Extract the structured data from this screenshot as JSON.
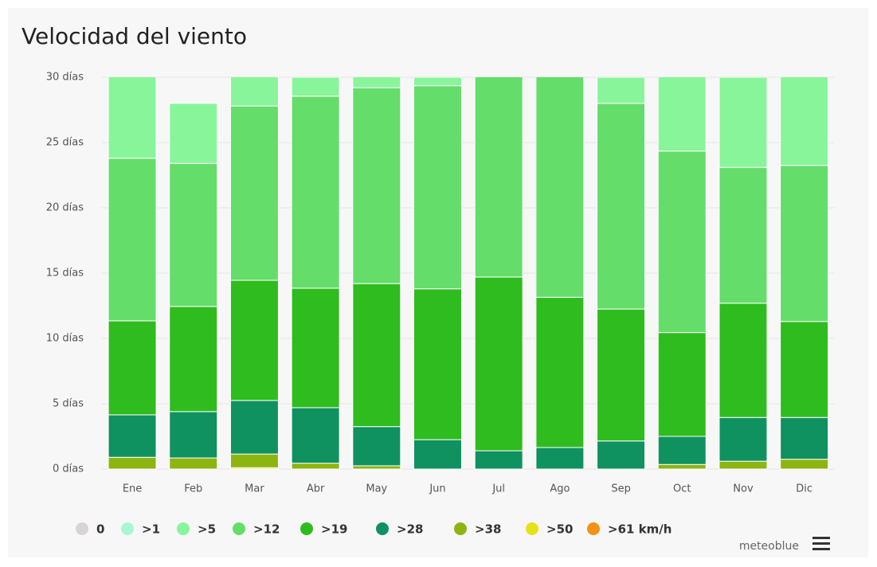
{
  "chart_data": {
    "type": "stacked_bar",
    "title": "Velocidad del viento",
    "categories": [
      "Ene",
      "Feb",
      "Mar",
      "Abr",
      "May",
      "Jun",
      "Jul",
      "Ago",
      "Sep",
      "Oct",
      "Nov",
      "Dic"
    ],
    "series": [
      {
        "name": "0",
        "color": "#d9d4d4",
        "values": [
          0,
          0,
          0,
          0,
          0,
          0,
          0,
          0,
          0,
          0,
          0,
          0
        ]
      },
      {
        "name": ">1",
        "color": "#a8f7d2",
        "values": [
          0,
          0,
          0,
          0,
          0,
          0,
          0,
          0,
          0,
          0,
          0,
          0
        ]
      },
      {
        "name": ">5",
        "color": "#89f59b",
        "values": [
          7.2,
          4.6,
          3.2,
          1.45,
          1.8,
          0.65,
          0,
          0,
          2.0,
          6.65,
          6.9,
          7.75
        ]
      },
      {
        "name": ">12",
        "color": "#64dd6b",
        "values": [
          12.45,
          10.95,
          13.35,
          14.7,
          15,
          15.55,
          16.3,
          17.85,
          15.75,
          13.9,
          10.4,
          11.95
        ]
      },
      {
        "name": ">19",
        "color": "#2fbc1e",
        "values": [
          7.2,
          8.05,
          9.2,
          9.15,
          10.95,
          11.55,
          13.3,
          11.5,
          10.1,
          7.95,
          8.75,
          7.35
        ]
      },
      {
        "name": ">28",
        "color": "#0f9160",
        "values": [
          3.25,
          3.55,
          4.1,
          4.25,
          3.0,
          2.25,
          1.4,
          1.65,
          2.15,
          2.15,
          3.35,
          3.2
        ]
      },
      {
        "name": ">38",
        "color": "#8cb511",
        "values": [
          0.9,
          0.85,
          1.05,
          0.45,
          0.25,
          0,
          0,
          0,
          0,
          0.35,
          0.6,
          0.75
        ]
      },
      {
        "name": ">50",
        "color": "#e5e21a",
        "values": [
          0,
          0,
          0.1,
          0,
          0,
          0,
          0,
          0,
          0,
          0,
          0,
          0
        ]
      },
      {
        "name": ">61 km/h",
        "color": "#f39213",
        "values": [
          0,
          0,
          0,
          0,
          0,
          0,
          0,
          0,
          0,
          0,
          0,
          0
        ]
      }
    ],
    "ylim": [
      0,
      30
    ],
    "yticks": [
      {
        "value": 0,
        "label": "0 días"
      },
      {
        "value": 5,
        "label": "5 días"
      },
      {
        "value": 10,
        "label": "10 días"
      },
      {
        "value": 15,
        "label": "15 días"
      },
      {
        "value": 20,
        "label": "20 días"
      },
      {
        "value": 25,
        "label": "25 días"
      },
      {
        "value": 30,
        "label": "30 días"
      }
    ],
    "grid": true,
    "credit": "meteoblue"
  }
}
